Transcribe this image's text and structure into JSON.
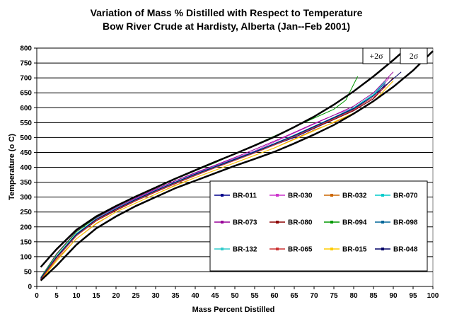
{
  "chart_data": {
    "type": "line",
    "title": "Variation of Mass %  Distilled with Respect to Temperature",
    "subtitle": "Bow River Crude at Hardisty, Alberta (Jan--Feb 2001)",
    "xlabel": "Mass Percent Distilled",
    "ylabel": "Temperature (o C)",
    "xlim": [
      0,
      100
    ],
    "ylim": [
      0,
      800
    ],
    "xticks": [
      "0",
      "5",
      "10",
      "15",
      "20",
      "25",
      "30",
      "35",
      "40",
      "45",
      "50",
      "55",
      "60",
      "65",
      "70",
      "75",
      "80",
      "85",
      "90",
      "95",
      "100"
    ],
    "yticks": [
      "0",
      "50",
      "100",
      "150",
      "200",
      "250",
      "300",
      "350",
      "400",
      "450",
      "500",
      "550",
      "600",
      "650",
      "700",
      "750",
      "800"
    ],
    "grid": "horizontal",
    "legend_position": "center-right",
    "colors": {
      "BR-011": "#00008b",
      "BR-030": "#cc33cc",
      "BR-032": "#cc6600",
      "BR-070": "#00cccc",
      "BR-073": "#990099",
      "BR-080": "#8b0000",
      "BR-094": "#009900",
      "BR-098": "#006699",
      "BR-132": "#33cccc",
      "BR-065": "#cc3333",
      "BR-015": "#ffcc00",
      "BR-048": "#000066",
      "limit": "#000000"
    },
    "series": [
      {
        "name": "BR-011",
        "points": [
          [
            1,
            27
          ],
          [
            5,
            95
          ],
          [
            10,
            175
          ],
          [
            15,
            225
          ],
          [
            20,
            260
          ],
          [
            25,
            290
          ],
          [
            30,
            320
          ],
          [
            35,
            345
          ],
          [
            40,
            375
          ],
          [
            45,
            400
          ],
          [
            50,
            425
          ],
          [
            55,
            450
          ],
          [
            60,
            475
          ],
          [
            65,
            500
          ],
          [
            70,
            530
          ],
          [
            75,
            560
          ],
          [
            80,
            590
          ],
          [
            85,
            630
          ],
          [
            88,
            680
          ]
        ]
      },
      {
        "name": "BR-030",
        "points": [
          [
            1,
            30
          ],
          [
            5,
            110
          ],
          [
            10,
            185
          ],
          [
            15,
            230
          ],
          [
            20,
            265
          ],
          [
            25,
            295
          ],
          [
            30,
            325
          ],
          [
            35,
            355
          ],
          [
            40,
            380
          ],
          [
            45,
            405
          ],
          [
            50,
            430
          ],
          [
            55,
            455
          ],
          [
            60,
            485
          ],
          [
            65,
            515
          ],
          [
            70,
            545
          ],
          [
            75,
            575
          ],
          [
            80,
            600
          ],
          [
            85,
            640
          ],
          [
            89,
            700
          ]
        ]
      },
      {
        "name": "BR-032",
        "points": [
          [
            1,
            22
          ],
          [
            5,
            90
          ],
          [
            10,
            160
          ],
          [
            15,
            210
          ],
          [
            20,
            250
          ],
          [
            25,
            280
          ],
          [
            30,
            310
          ],
          [
            35,
            340
          ],
          [
            40,
            365
          ],
          [
            45,
            390
          ],
          [
            50,
            415
          ],
          [
            55,
            440
          ],
          [
            60,
            465
          ],
          [
            65,
            495
          ],
          [
            70,
            525
          ],
          [
            75,
            550
          ],
          [
            80,
            580
          ],
          [
            85,
            620
          ],
          [
            90,
            690
          ]
        ]
      },
      {
        "name": "BR-070",
        "points": [
          [
            1,
            28
          ],
          [
            5,
            100
          ],
          [
            10,
            175
          ],
          [
            15,
            225
          ],
          [
            20,
            262
          ],
          [
            25,
            293
          ],
          [
            30,
            322
          ],
          [
            35,
            350
          ],
          [
            40,
            378
          ],
          [
            45,
            403
          ],
          [
            50,
            428
          ],
          [
            55,
            453
          ],
          [
            60,
            480
          ],
          [
            65,
            508
          ],
          [
            70,
            538
          ],
          [
            75,
            568
          ],
          [
            80,
            600
          ],
          [
            85,
            645
          ],
          [
            88,
            690
          ]
        ]
      },
      {
        "name": "BR-073",
        "points": [
          [
            1,
            30
          ],
          [
            5,
            110
          ],
          [
            10,
            185
          ],
          [
            15,
            230
          ],
          [
            20,
            265
          ],
          [
            25,
            297
          ],
          [
            30,
            327
          ],
          [
            35,
            355
          ],
          [
            40,
            382
          ],
          [
            45,
            407
          ],
          [
            50,
            433
          ],
          [
            55,
            460
          ],
          [
            60,
            488
          ],
          [
            65,
            517
          ],
          [
            70,
            547
          ],
          [
            75,
            575
          ],
          [
            80,
            605
          ],
          [
            85,
            650
          ],
          [
            90,
            720
          ]
        ]
      },
      {
        "name": "BR-080",
        "points": [
          [
            1,
            25
          ],
          [
            5,
            95
          ],
          [
            10,
            170
          ],
          [
            15,
            220
          ],
          [
            20,
            255
          ],
          [
            25,
            287
          ],
          [
            30,
            317
          ],
          [
            35,
            345
          ],
          [
            40,
            372
          ],
          [
            45,
            398
          ],
          [
            50,
            423
          ],
          [
            55,
            448
          ],
          [
            60,
            475
          ],
          [
            65,
            503
          ],
          [
            70,
            532
          ],
          [
            75,
            560
          ],
          [
            80,
            590
          ],
          [
            85,
            630
          ],
          [
            90,
            700
          ]
        ]
      },
      {
        "name": "BR-094",
        "points": [
          [
            1,
            30
          ],
          [
            5,
            108
          ],
          [
            10,
            183
          ],
          [
            15,
            232
          ],
          [
            20,
            268
          ],
          [
            25,
            300
          ],
          [
            30,
            330
          ],
          [
            35,
            360
          ],
          [
            40,
            388
          ],
          [
            45,
            415
          ],
          [
            50,
            445
          ],
          [
            55,
            475
          ],
          [
            60,
            505
          ],
          [
            65,
            535
          ],
          [
            70,
            565
          ],
          [
            75,
            595
          ],
          [
            78,
            625
          ],
          [
            81,
            705
          ]
        ]
      },
      {
        "name": "BR-098",
        "points": [
          [
            1,
            26
          ],
          [
            5,
            98
          ],
          [
            10,
            172
          ],
          [
            15,
            222
          ],
          [
            20,
            258
          ],
          [
            25,
            290
          ],
          [
            30,
            320
          ],
          [
            35,
            348
          ],
          [
            40,
            375
          ],
          [
            45,
            400
          ],
          [
            50,
            425
          ],
          [
            55,
            450
          ],
          [
            60,
            477
          ],
          [
            65,
            505
          ],
          [
            70,
            535
          ],
          [
            75,
            565
          ],
          [
            80,
            595
          ],
          [
            85,
            640
          ],
          [
            88,
            685
          ]
        ]
      },
      {
        "name": "BR-132",
        "points": [
          [
            1,
            28
          ],
          [
            5,
            102
          ],
          [
            10,
            178
          ],
          [
            15,
            227
          ],
          [
            20,
            262
          ],
          [
            25,
            293
          ],
          [
            30,
            323
          ],
          [
            35,
            351
          ],
          [
            40,
            378
          ],
          [
            45,
            403
          ],
          [
            50,
            428
          ],
          [
            55,
            453
          ],
          [
            60,
            480
          ],
          [
            65,
            508
          ],
          [
            70,
            538
          ],
          [
            75,
            568
          ],
          [
            80,
            598
          ],
          [
            85,
            642
          ],
          [
            88,
            690
          ]
        ]
      },
      {
        "name": "BR-065",
        "points": [
          [
            1,
            25
          ],
          [
            5,
            95
          ],
          [
            10,
            170
          ],
          [
            15,
            222
          ],
          [
            20,
            258
          ],
          [
            25,
            288
          ],
          [
            30,
            318
          ],
          [
            35,
            346
          ],
          [
            40,
            373
          ],
          [
            45,
            398
          ],
          [
            50,
            423
          ],
          [
            55,
            448
          ],
          [
            60,
            475
          ],
          [
            65,
            503
          ],
          [
            70,
            533
          ],
          [
            75,
            563
          ],
          [
            80,
            593
          ],
          [
            85,
            635
          ],
          [
            88,
            670
          ]
        ]
      },
      {
        "name": "BR-015",
        "points": [
          [
            1,
            20
          ],
          [
            5,
            85
          ],
          [
            10,
            160
          ],
          [
            15,
            212
          ],
          [
            20,
            250
          ],
          [
            25,
            280
          ],
          [
            30,
            310
          ],
          [
            35,
            338
          ],
          [
            40,
            365
          ],
          [
            45,
            390
          ],
          [
            50,
            415
          ],
          [
            55,
            440
          ],
          [
            60,
            465
          ],
          [
            65,
            493
          ],
          [
            70,
            522
          ],
          [
            75,
            552
          ],
          [
            80,
            582
          ],
          [
            85,
            620
          ],
          [
            90,
            690
          ]
        ]
      },
      {
        "name": "BR-048",
        "points": [
          [
            1,
            27
          ],
          [
            5,
            100
          ],
          [
            10,
            175
          ],
          [
            15,
            225
          ],
          [
            20,
            260
          ],
          [
            25,
            292
          ],
          [
            30,
            322
          ],
          [
            35,
            350
          ],
          [
            40,
            377
          ],
          [
            45,
            402
          ],
          [
            50,
            427
          ],
          [
            55,
            452
          ],
          [
            60,
            479
          ],
          [
            65,
            507
          ],
          [
            70,
            537
          ],
          [
            75,
            567
          ],
          [
            80,
            597
          ],
          [
            85,
            640
          ],
          [
            92,
            720
          ]
        ]
      }
    ],
    "limits": [
      {
        "label": "+2σ",
        "points": [
          [
            1,
            65
          ],
          [
            5,
            125
          ],
          [
            10,
            190
          ],
          [
            15,
            235
          ],
          [
            20,
            270
          ],
          [
            25,
            302
          ],
          [
            30,
            332
          ],
          [
            35,
            362
          ],
          [
            40,
            390
          ],
          [
            45,
            418
          ],
          [
            50,
            445
          ],
          [
            55,
            473
          ],
          [
            60,
            502
          ],
          [
            65,
            535
          ],
          [
            70,
            570
          ],
          [
            75,
            610
          ],
          [
            80,
            655
          ],
          [
            85,
            705
          ],
          [
            90,
            760
          ],
          [
            93,
            795
          ]
        ]
      },
      {
        "label": "2σ",
        "points": [
          [
            1,
            20
          ],
          [
            5,
            70
          ],
          [
            10,
            140
          ],
          [
            15,
            195
          ],
          [
            20,
            235
          ],
          [
            25,
            270
          ],
          [
            30,
            300
          ],
          [
            35,
            330
          ],
          [
            40,
            355
          ],
          [
            45,
            380
          ],
          [
            50,
            405
          ],
          [
            55,
            428
          ],
          [
            60,
            452
          ],
          [
            65,
            480
          ],
          [
            70,
            510
          ],
          [
            75,
            542
          ],
          [
            80,
            580
          ],
          [
            85,
            622
          ],
          [
            90,
            670
          ],
          [
            95,
            725
          ],
          [
            100,
            790
          ]
        ]
      }
    ]
  }
}
